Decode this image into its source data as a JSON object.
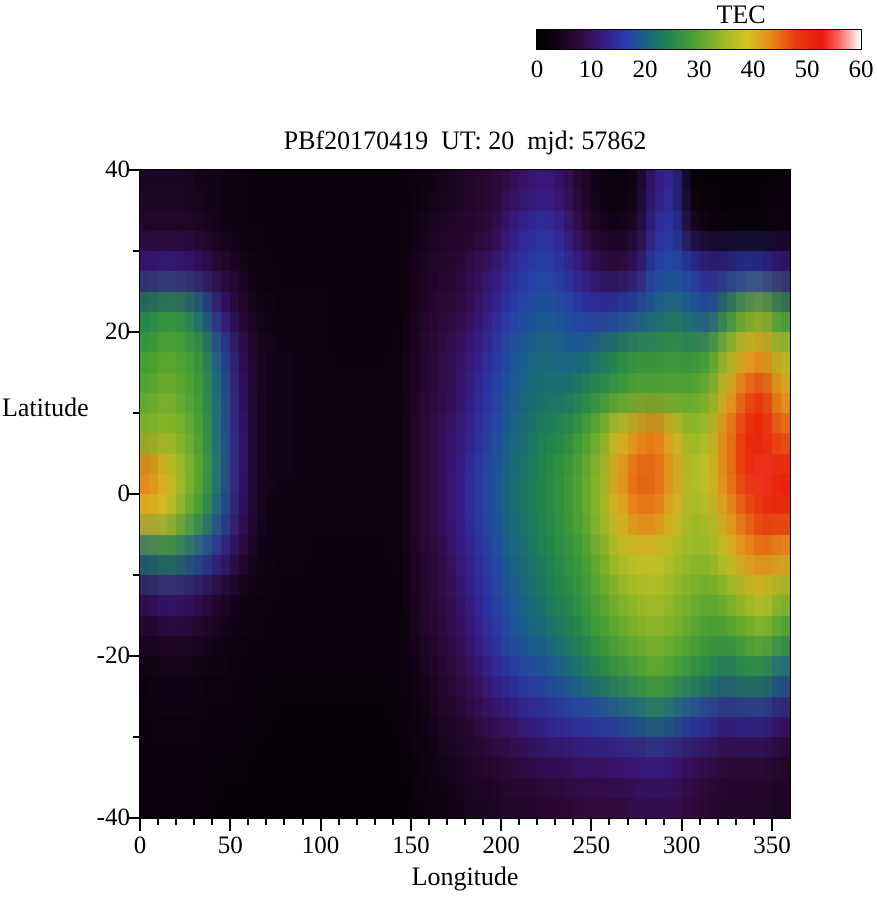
{
  "title": "PBf20170419  UT: 20  mjd: 57862",
  "colorbar": {
    "title": "TEC",
    "min": 0,
    "max": 60,
    "tick_values": [
      0,
      10,
      20,
      30,
      40,
      50,
      60
    ]
  },
  "axes": {
    "x": {
      "label": "Longitude",
      "min": 0,
      "max": 360,
      "major_ticks": [
        0,
        50,
        100,
        150,
        200,
        250,
        300,
        350
      ],
      "minor_step": 10
    },
    "y": {
      "label": "Latitude",
      "min": -40,
      "max": 40,
      "major_ticks": [
        -40,
        -20,
        0,
        20,
        40
      ],
      "minor_step": 10
    }
  },
  "colormap": {
    "stops": [
      {
        "t": 0.0,
        "c": [
          0,
          0,
          0
        ]
      },
      {
        "t": 0.06,
        "c": [
          18,
          2,
          22
        ]
      },
      {
        "t": 0.13,
        "c": [
          48,
          10,
          58
        ]
      },
      {
        "t": 0.2,
        "c": [
          58,
          24,
          128
        ]
      },
      {
        "t": 0.27,
        "c": [
          40,
          60,
          175
        ]
      },
      {
        "t": 0.33,
        "c": [
          25,
          95,
          140
        ]
      },
      {
        "t": 0.4,
        "c": [
          30,
          130,
          80
        ]
      },
      {
        "t": 0.48,
        "c": [
          70,
          160,
          50
        ]
      },
      {
        "t": 0.57,
        "c": [
          150,
          185,
          40
        ]
      },
      {
        "t": 0.65,
        "c": [
          215,
          195,
          35
        ]
      },
      {
        "t": 0.72,
        "c": [
          232,
          140,
          25
        ]
      },
      {
        "t": 0.8,
        "c": [
          228,
          60,
          15
        ]
      },
      {
        "t": 0.88,
        "c": [
          235,
          25,
          10
        ]
      },
      {
        "t": 0.93,
        "c": [
          250,
          95,
          85
        ]
      },
      {
        "t": 0.97,
        "c": [
          255,
          185,
          175
        ]
      },
      {
        "t": 1.0,
        "c": [
          255,
          255,
          255
        ]
      }
    ]
  },
  "chart_data": {
    "type": "heatmap",
    "title": "PBf20170419  UT: 20  mjd: 57862",
    "xlabel": "Longitude",
    "ylabel": "Latitude",
    "value_label": "TEC",
    "x_range": [
      0,
      360
    ],
    "y_range": [
      -40,
      40
    ],
    "value_range": [
      0,
      60
    ],
    "lon_centers": [
      5,
      15,
      25,
      35,
      45,
      55,
      65,
      75,
      85,
      95,
      105,
      115,
      125,
      135,
      145,
      155,
      165,
      175,
      185,
      195,
      205,
      215,
      225,
      235,
      245,
      255,
      265,
      275,
      285,
      295,
      305,
      315,
      325,
      335,
      345,
      355
    ],
    "lat_centers": [
      37.5,
      32.5,
      27.5,
      22.5,
      17.5,
      12.5,
      7.5,
      2.5,
      -2.5,
      -7.5,
      -12.5,
      -17.5,
      -22.5,
      -27.5,
      -32.5,
      -37.5
    ],
    "values": [
      [
        5,
        5,
        5,
        4,
        4,
        3,
        2,
        2,
        2,
        2,
        2,
        2,
        2,
        2,
        2,
        3,
        4,
        5,
        6,
        7,
        9,
        11,
        12,
        10,
        6,
        3,
        2,
        4,
        12,
        14,
        2,
        1,
        1,
        1,
        1,
        2
      ],
      [
        6,
        6,
        6,
        5,
        4,
        3,
        2,
        2,
        2,
        2,
        2,
        2,
        2,
        2,
        2,
        4,
        5,
        6,
        7,
        8,
        12,
        14,
        15,
        13,
        8,
        5,
        4,
        6,
        14,
        16,
        6,
        3,
        2,
        2,
        2,
        3
      ],
      [
        12,
        13,
        12,
        10,
        7,
        5,
        3,
        2,
        2,
        2,
        2,
        2,
        2,
        2,
        2,
        5,
        6,
        7,
        9,
        11,
        14,
        16,
        17,
        15,
        12,
        9,
        8,
        11,
        17,
        18,
        16,
        13,
        14,
        16,
        15,
        12
      ],
      [
        24,
        26,
        25,
        20,
        12,
        7,
        4,
        3,
        3,
        3,
        2,
        2,
        2,
        2,
        2,
        5,
        7,
        8,
        10,
        13,
        16,
        18,
        19,
        18,
        16,
        15,
        16,
        18,
        20,
        22,
        20,
        18,
        24,
        30,
        32,
        26
      ],
      [
        28,
        30,
        29,
        26,
        18,
        10,
        5,
        4,
        4,
        3,
        2,
        2,
        2,
        2,
        3,
        6,
        8,
        10,
        12,
        15,
        18,
        20,
        21,
        20,
        20,
        22,
        24,
        26,
        26,
        27,
        26,
        28,
        34,
        40,
        42,
        36
      ],
      [
        30,
        32,
        30,
        27,
        20,
        11,
        5,
        4,
        4,
        3,
        3,
        3,
        3,
        3,
        3,
        6,
        8,
        10,
        13,
        16,
        19,
        21,
        22,
        22,
        24,
        26,
        28,
        30,
        30,
        30,
        30,
        32,
        40,
        46,
        48,
        42
      ],
      [
        33,
        34,
        32,
        28,
        20,
        12,
        5,
        4,
        4,
        3,
        3,
        3,
        3,
        3,
        3,
        7,
        9,
        11,
        14,
        17,
        20,
        22,
        24,
        25,
        28,
        32,
        38,
        42,
        44,
        40,
        34,
        36,
        44,
        50,
        52,
        46
      ],
      [
        44,
        40,
        34,
        29,
        21,
        12,
        5,
        4,
        4,
        3,
        3,
        3,
        3,
        3,
        3,
        7,
        9,
        12,
        15,
        18,
        21,
        23,
        25,
        27,
        30,
        34,
        42,
        46,
        46,
        42,
        36,
        38,
        44,
        50,
        54,
        52
      ],
      [
        40,
        38,
        32,
        27,
        19,
        11,
        5,
        3,
        3,
        3,
        3,
        3,
        3,
        3,
        3,
        7,
        9,
        12,
        15,
        18,
        21,
        23,
        25,
        27,
        30,
        34,
        40,
        44,
        44,
        40,
        35,
        36,
        42,
        46,
        50,
        50
      ],
      [
        22,
        24,
        22,
        18,
        13,
        8,
        4,
        3,
        3,
        2,
        2,
        2,
        2,
        2,
        3,
        6,
        8,
        11,
        14,
        17,
        20,
        22,
        24,
        26,
        28,
        32,
        36,
        38,
        38,
        36,
        34,
        34,
        38,
        42,
        44,
        42
      ],
      [
        10,
        12,
        11,
        9,
        6,
        4,
        3,
        2,
        2,
        2,
        2,
        2,
        2,
        2,
        2,
        6,
        8,
        10,
        13,
        16,
        19,
        21,
        23,
        25,
        27,
        30,
        33,
        35,
        36,
        34,
        32,
        31,
        33,
        36,
        38,
        34
      ],
      [
        5,
        6,
        6,
        5,
        4,
        3,
        2,
        2,
        2,
        2,
        2,
        2,
        2,
        2,
        2,
        5,
        7,
        9,
        12,
        15,
        18,
        20,
        21,
        23,
        25,
        28,
        30,
        32,
        33,
        32,
        30,
        28,
        28,
        30,
        32,
        28
      ],
      [
        3,
        4,
        4,
        3,
        3,
        2,
        2,
        2,
        2,
        2,
        2,
        2,
        2,
        2,
        2,
        4,
        6,
        8,
        10,
        13,
        15,
        17,
        18,
        20,
        22,
        24,
        26,
        28,
        30,
        28,
        26,
        24,
        22,
        24,
        24,
        20
      ],
      [
        2,
        3,
        3,
        2,
        2,
        2,
        2,
        1,
        1,
        1,
        1,
        1,
        1,
        1,
        2,
        3,
        5,
        6,
        8,
        10,
        11,
        13,
        14,
        15,
        16,
        17,
        18,
        20,
        22,
        20,
        17,
        15,
        13,
        14,
        14,
        11
      ],
      [
        2,
        2,
        2,
        2,
        2,
        2,
        1,
        1,
        1,
        1,
        1,
        1,
        1,
        1,
        1,
        3,
        4,
        5,
        6,
        7,
        8,
        9,
        10,
        10,
        11,
        11,
        12,
        12,
        13,
        12,
        10,
        9,
        8,
        8,
        8,
        6
      ],
      [
        2,
        2,
        2,
        2,
        1,
        1,
        1,
        1,
        1,
        1,
        1,
        1,
        1,
        1,
        1,
        2,
        3,
        4,
        5,
        5,
        6,
        6,
        7,
        7,
        8,
        8,
        8,
        9,
        9,
        9,
        8,
        7,
        6,
        6,
        6,
        5
      ]
    ]
  }
}
